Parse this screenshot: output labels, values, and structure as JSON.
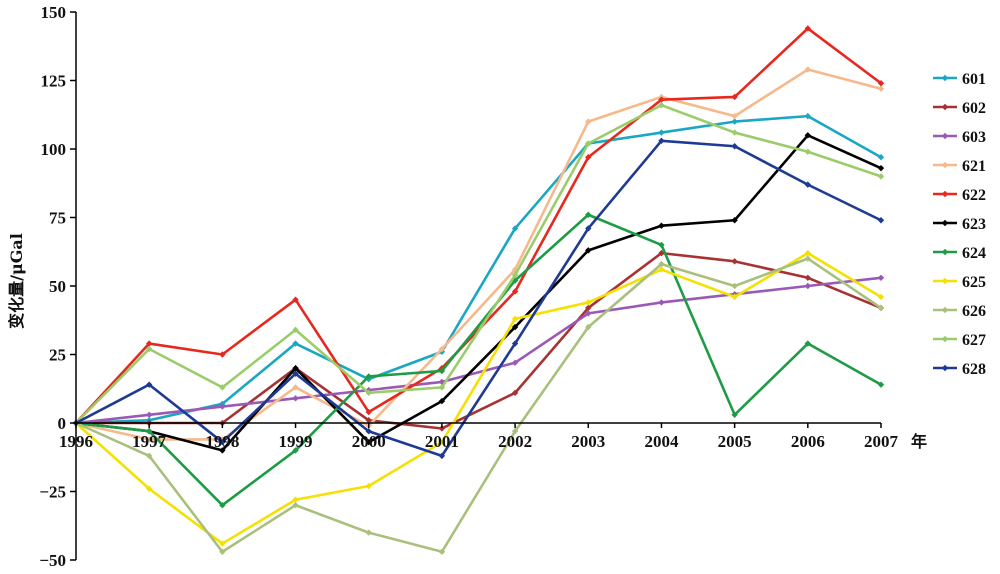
{
  "chart_data": {
    "type": "line",
    "title": "",
    "xlabel": "",
    "x_unit": "年",
    "ylabel": "变化量/μGal",
    "x": [
      "1996",
      "1997",
      "1998",
      "1999",
      "2000",
      "2001",
      "2002",
      "2003",
      "2004",
      "2005",
      "2006",
      "2007"
    ],
    "ylim": [
      -50,
      150
    ],
    "yticks": [
      -50,
      -25,
      0,
      25,
      50,
      75,
      100,
      125,
      150
    ],
    "ytick_labels": [
      "−50",
      "−25",
      "0",
      "25",
      "50",
      "75",
      "100",
      "125",
      "150"
    ],
    "grid": false,
    "legend_position": "right",
    "series": [
      {
        "name": "601",
        "color": "#1aa7c4",
        "values": [
          0,
          1,
          7,
          29,
          16,
          26,
          71,
          102,
          106,
          110,
          112,
          97
        ]
      },
      {
        "name": "602",
        "color": "#a83232",
        "values": [
          0,
          0,
          0,
          20,
          1,
          -2,
          11,
          42,
          62,
          59,
          53,
          42
        ]
      },
      {
        "name": "603",
        "color": "#9b59b6",
        "values": [
          0,
          3,
          6,
          9,
          12,
          15,
          22,
          40,
          44,
          47,
          50,
          53
        ]
      },
      {
        "name": "621",
        "color": "#f5b98b",
        "values": [
          0,
          -6,
          -6,
          13,
          -1,
          27,
          56,
          110,
          119,
          112,
          129,
          122
        ]
      },
      {
        "name": "622",
        "color": "#e8281e",
        "values": [
          0,
          29,
          25,
          45,
          4,
          20,
          48,
          97,
          118,
          119,
          144,
          124
        ]
      },
      {
        "name": "623",
        "color": "#000000",
        "values": [
          0,
          -3,
          -10,
          20,
          -7,
          8,
          35,
          63,
          72,
          74,
          105,
          93
        ]
      },
      {
        "name": "624",
        "color": "#1e9c45",
        "values": [
          0,
          -3,
          -30,
          -10,
          17,
          19,
          52,
          76,
          65,
          3,
          29,
          14
        ]
      },
      {
        "name": "625",
        "color": "#f5e000",
        "values": [
          0,
          -24,
          -44,
          -28,
          -23,
          -7,
          38,
          44,
          56,
          46,
          62,
          46
        ]
      },
      {
        "name": "626",
        "color": "#a8c07c",
        "values": [
          0,
          -12,
          -47,
          -30,
          -40,
          -47,
          -3,
          35,
          58,
          50,
          60,
          42
        ]
      },
      {
        "name": "627",
        "color": "#9acd6a",
        "values": [
          0,
          27,
          13,
          34,
          11,
          13,
          54,
          102,
          116,
          106,
          99,
          90
        ]
      },
      {
        "name": "628",
        "color": "#1f3a93",
        "values": [
          0,
          14,
          -7,
          18,
          -3,
          -12,
          29,
          71,
          103,
          101,
          87,
          74
        ]
      }
    ]
  }
}
